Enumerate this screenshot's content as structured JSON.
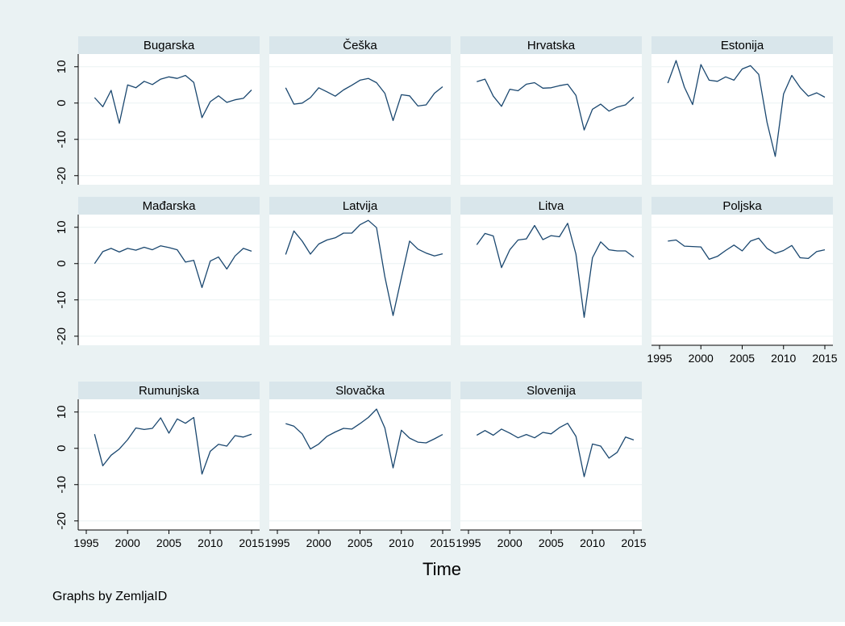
{
  "figure": {
    "xlabel": "Time",
    "note": "Graphs by ZemljaID",
    "colors": {
      "outer_background": "#eaf2f3",
      "plot_background": "#ffffff",
      "panel_title_background": "#d9e6eb",
      "line": "#1a476f",
      "gridline": "#eaf2f3",
      "text": "#000000"
    }
  },
  "chart_data": {
    "type": "line",
    "layout": "small multiples, 4 columns x 3 rows",
    "x": [
      1996,
      1997,
      1998,
      1999,
      2000,
      2001,
      2002,
      2003,
      2004,
      2005,
      2006,
      2007,
      2008,
      2009,
      2010,
      2011,
      2012,
      2013,
      2014,
      2015
    ],
    "xticks": [
      "1995",
      "2000",
      "2005",
      "2010",
      "2015"
    ],
    "xtick_values": [
      1995,
      2000,
      2005,
      2010,
      2015
    ],
    "xlim": [
      1995,
      2015
    ],
    "yticks": [
      "10",
      "0",
      "-10",
      "-20"
    ],
    "ytick_values": [
      10,
      0,
      -10,
      -20
    ],
    "ylim": [
      -22.5,
      13.5
    ],
    "grid": true,
    "legend": "none",
    "series": [
      {
        "name": "Bugarska",
        "values": [
          1.5,
          -1,
          3.5,
          -5.6,
          5,
          4.2,
          6,
          5.1,
          6.6,
          7.2,
          6.8,
          7.6,
          5.7,
          -4,
          0.4,
          2,
          0.2,
          0.9,
          1.3,
          3.6
        ]
      },
      {
        "name": "Češka",
        "values": [
          4.2,
          -0.3,
          0,
          1.5,
          4.2,
          3.1,
          1.9,
          3.6,
          4.9,
          6.3,
          6.8,
          5.6,
          2.7,
          -4.8,
          2.3,
          2,
          -0.8,
          -0.5,
          2.7,
          4.5
        ]
      },
      {
        "name": "Hrvatska",
        "values": [
          5.9,
          6.6,
          1.9,
          -0.9,
          3.8,
          3.4,
          5.2,
          5.6,
          4.1,
          4.2,
          4.8,
          5.2,
          2.1,
          -7.4,
          -1.7,
          -0.3,
          -2.2,
          -1.1,
          -0.5,
          1.6
        ]
      },
      {
        "name": "Estonija",
        "values": [
          5.5,
          11.7,
          4.4,
          -0.4,
          10.6,
          6.3,
          6,
          7.2,
          6.3,
          9.4,
          10.3,
          7.9,
          -5.3,
          -14.7,
          2.5,
          7.6,
          4.3,
          1.9,
          2.8,
          1.6
        ]
      },
      {
        "name": "Mađarska",
        "values": [
          0,
          3.3,
          4.2,
          3.2,
          4.2,
          3.7,
          4.5,
          3.8,
          4.9,
          4.4,
          3.8,
          0.4,
          0.9,
          -6.6,
          0.7,
          1.8,
          -1.5,
          2.1,
          4.2,
          3.4
        ]
      },
      {
        "name": "Latvija",
        "values": [
          2.5,
          9,
          6.2,
          2.6,
          5.4,
          6.5,
          7.1,
          8.4,
          8.4,
          10.7,
          11.9,
          9.9,
          -3.6,
          -14.3,
          -3.9,
          6.2,
          4,
          2.9,
          2.1,
          2.7
        ]
      },
      {
        "name": "Litva",
        "values": [
          5.2,
          8.3,
          7.6,
          -1.1,
          3.8,
          6.5,
          6.8,
          10.5,
          6.6,
          7.7,
          7.4,
          11.1,
          2.6,
          -14.8,
          1.6,
          6,
          3.8,
          3.5,
          3.5,
          1.8
        ]
      },
      {
        "name": "Poljska",
        "values": [
          6.2,
          6.5,
          4.8,
          4.7,
          4.6,
          1.2,
          2,
          3.6,
          5.1,
          3.5,
          6.2,
          7,
          4.2,
          2.8,
          3.6,
          5,
          1.6,
          1.4,
          3.3,
          3.8
        ]
      },
      {
        "name": "Rumunjska",
        "values": [
          3.9,
          -4.8,
          -1.9,
          -0.2,
          2.4,
          5.6,
          5.2,
          5.5,
          8.4,
          4.2,
          8.1,
          6.9,
          8.5,
          -7.1,
          -0.8,
          1.1,
          0.6,
          3.5,
          3.1,
          3.9
        ]
      },
      {
        "name": "Slovačka",
        "values": [
          6.8,
          6.1,
          4,
          -0.2,
          1.2,
          3.3,
          4.5,
          5.5,
          5.3,
          6.8,
          8.5,
          10.8,
          5.6,
          -5.4,
          5,
          2.8,
          1.7,
          1.5,
          2.6,
          3.8
        ]
      },
      {
        "name": "Slovenija",
        "values": [
          3.6,
          4.9,
          3.6,
          5.3,
          4.2,
          2.9,
          3.8,
          2.9,
          4.4,
          4,
          5.7,
          6.9,
          3.3,
          -7.8,
          1.2,
          0.6,
          -2.7,
          -1.1,
          3.1,
          2.3
        ]
      }
    ]
  }
}
